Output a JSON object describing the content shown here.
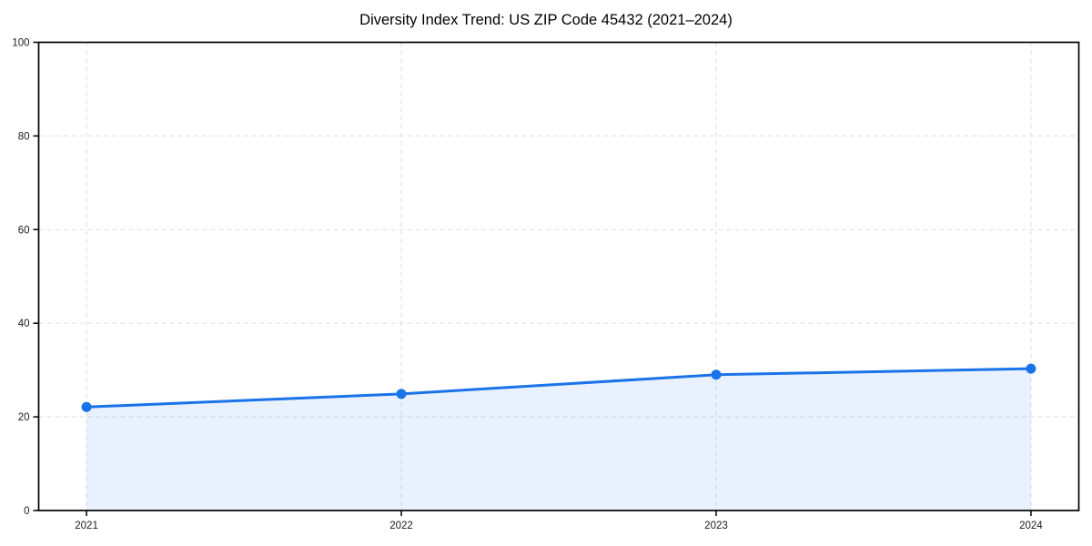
{
  "chart_data": {
    "type": "line",
    "title": "Diversity Index Trend: US ZIP Code 45432 (2021–2024)",
    "categories": [
      "2021",
      "2022",
      "2023",
      "2024"
    ],
    "series": [
      {
        "name": "Diversity Index",
        "values": [
          22.1,
          24.9,
          29.0,
          30.3
        ]
      }
    ],
    "xlabel": "",
    "ylabel": "",
    "ylim": [
      0,
      100
    ],
    "yticks": [
      0,
      20,
      40,
      60,
      80,
      100
    ],
    "grid": "dashed horizontal and vertical",
    "legend_position": "none",
    "area_fill": true,
    "colors": {
      "line": "#1a73e8",
      "marker": "#1a73e8",
      "fill": "#1a73e8",
      "fill_opacity": 0.1,
      "grid": "#e2e2e2",
      "axis": "#000000",
      "tick_label": "#1a1a1a",
      "title": "#000000",
      "background": "#ffffff"
    }
  }
}
